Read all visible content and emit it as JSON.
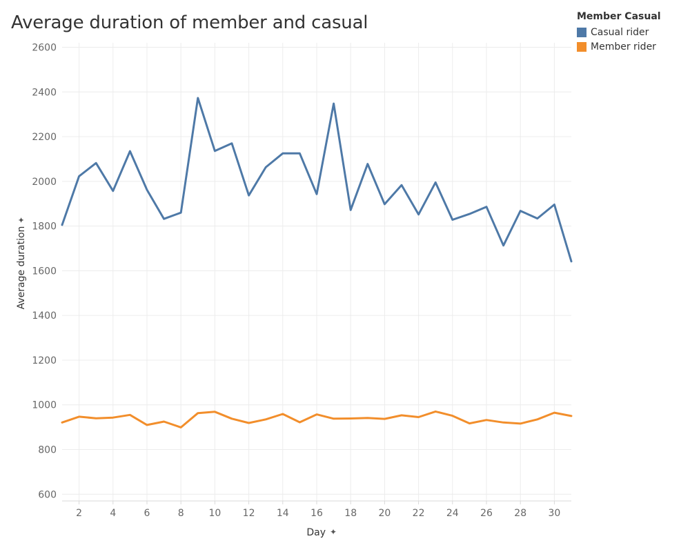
{
  "chart_data": {
    "type": "line",
    "title": "Average duration of member and casual",
    "xlabel": "Day",
    "ylabel": "Average duration",
    "xlim": [
      1,
      31
    ],
    "ylim": [
      570,
      2620
    ],
    "x_ticks": [
      2,
      4,
      6,
      8,
      10,
      12,
      14,
      16,
      18,
      20,
      22,
      24,
      26,
      28,
      30
    ],
    "y_ticks": [
      600,
      800,
      1000,
      1200,
      1400,
      1600,
      1800,
      2000,
      2200,
      2400,
      2600
    ],
    "legend_title": "Member Casual",
    "legend_position": "top-right",
    "grid": true,
    "x": [
      1,
      2,
      3,
      4,
      5,
      6,
      7,
      8,
      9,
      10,
      11,
      12,
      13,
      14,
      15,
      16,
      17,
      18,
      19,
      20,
      21,
      22,
      23,
      24,
      25,
      26,
      27,
      28,
      29,
      30,
      31
    ],
    "series": [
      {
        "name": "Casual rider",
        "color": "#4e79a7",
        "values": [
          1805,
          2023,
          2082,
          1957,
          2135,
          1962,
          1832,
          1860,
          2373,
          2136,
          2170,
          1937,
          2063,
          2125,
          2125,
          1943,
          2348,
          1872,
          2078,
          1898,
          1983,
          1852,
          1995,
          1828,
          1854,
          1886,
          1713,
          1868,
          1834,
          1896,
          1642
        ]
      },
      {
        "name": "Member rider",
        "color": "#f28e2b",
        "values": [
          921,
          947,
          940,
          943,
          955,
          910,
          925,
          899,
          963,
          969,
          938,
          919,
          935,
          959,
          922,
          957,
          938,
          939,
          941,
          937,
          953,
          945,
          970,
          951,
          917,
          932,
          921,
          916,
          935,
          965,
          950
        ]
      }
    ]
  }
}
